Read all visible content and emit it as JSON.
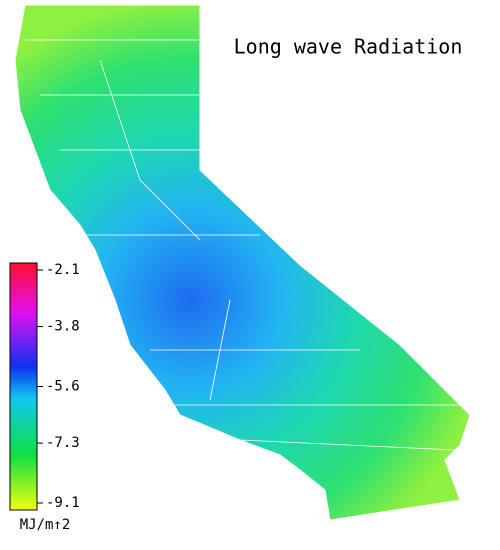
{
  "title": "Long wave Radiation",
  "legend": {
    "ticks": [
      -2.1,
      -3.8,
      -5.6,
      -7.3,
      -9.1
    ],
    "unit": "MJ/m↑2"
  }
}
